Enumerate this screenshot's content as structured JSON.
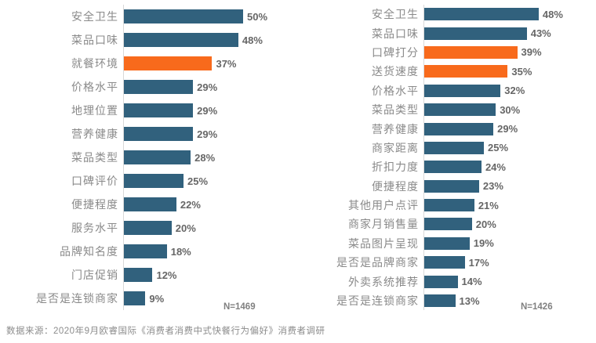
{
  "colors": {
    "bar_primary": "#31617D",
    "bar_highlight": "#F86A1C",
    "axis_line": "#D9D9D9",
    "label_text": "#8A8A8A",
    "value_text": "#666666",
    "source_text": "#8C8C8C"
  },
  "chart_data": [
    {
      "type": "bar",
      "orientation": "horizontal",
      "title": "",
      "categories": [
        "安全卫生",
        "菜品口味",
        "就餐环境",
        "价格水平",
        "地理位置",
        "营养健康",
        "菜品类型",
        "口碑评价",
        "便捷程度",
        "服务水平",
        "品牌知名度",
        "门店促销",
        "是否是连锁商家"
      ],
      "values": [
        50,
        48,
        37,
        29,
        29,
        29,
        28,
        25,
        22,
        20,
        18,
        12,
        9
      ],
      "value_suffix": "%",
      "highlight_indices": [
        2
      ],
      "n_label": "N=1469",
      "xlim": [
        0,
        52
      ],
      "grid": false,
      "legend": false
    },
    {
      "type": "bar",
      "orientation": "horizontal",
      "title": "",
      "categories": [
        "安全卫生",
        "菜品口味",
        "口碑打分",
        "送货速度",
        "价格水平",
        "菜品类型",
        "营养健康",
        "商家距离",
        "折扣力度",
        "便捷程度",
        "其他用户点评",
        "商家月销售量",
        "菜品图片呈现",
        "是否是品牌商家",
        "外卖系统推荐",
        "是否是连锁商家"
      ],
      "values": [
        48,
        43,
        39,
        35,
        32,
        30,
        29,
        25,
        24,
        23,
        21,
        20,
        19,
        17,
        14,
        13
      ],
      "value_suffix": "%",
      "highlight_indices": [
        2,
        3
      ],
      "n_label": "N=1426",
      "xlim": [
        0,
        52
      ],
      "grid": false,
      "legend": false
    }
  ],
  "footer": {
    "source_note": "数据来源：2020年9月欧睿国际《消费者消费中式快餐行为偏好》消费者调研"
  }
}
